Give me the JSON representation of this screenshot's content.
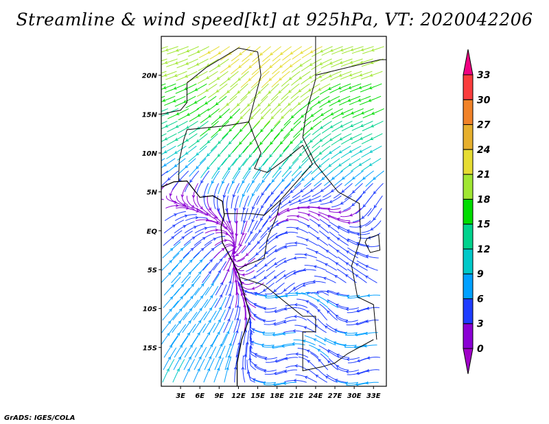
{
  "title": "Streamline & wind speed[kt] at 925hPa, VT: 2020042206",
  "credit": "GrADS: IGES/COLA",
  "map": {
    "lon_range": [
      0,
      35
    ],
    "lat_range": [
      -20,
      25
    ],
    "lon_ticks": [
      {
        "v": 3,
        "label": "3E"
      },
      {
        "v": 6,
        "label": "6E"
      },
      {
        "v": 9,
        "label": "9E"
      },
      {
        "v": 12,
        "label": "12E"
      },
      {
        "v": 15,
        "label": "15E"
      },
      {
        "v": 18,
        "label": "18E"
      },
      {
        "v": 21,
        "label": "21E"
      },
      {
        "v": 24,
        "label": "24E"
      },
      {
        "v": 27,
        "label": "27E"
      },
      {
        "v": 30,
        "label": "30E"
      },
      {
        "v": 33,
        "label": "33E"
      }
    ],
    "lat_ticks": [
      {
        "v": 20,
        "label": "20N"
      },
      {
        "v": 15,
        "label": "15N"
      },
      {
        "v": 10,
        "label": "10N"
      },
      {
        "v": 5,
        "label": "5N"
      },
      {
        "v": 0,
        "label": "EQ"
      },
      {
        "v": -5,
        "label": "5S"
      },
      {
        "v": -10,
        "label": "10S"
      },
      {
        "v": -15,
        "label": "15S"
      }
    ]
  },
  "colorbar": {
    "levels": [
      "0",
      "3",
      "6",
      "9",
      "12",
      "15",
      "18",
      "21",
      "24",
      "27",
      "30",
      "33"
    ],
    "colors": [
      "#8a00d4",
      "#1e3cff",
      "#00a0ff",
      "#00c8c8",
      "#00d28c",
      "#00dc00",
      "#a0e632",
      "#e6dc32",
      "#e6af2d",
      "#f08228",
      "#fa3c3c"
    ],
    "under_color": "#a000c8",
    "over_color": "#f00082"
  }
}
